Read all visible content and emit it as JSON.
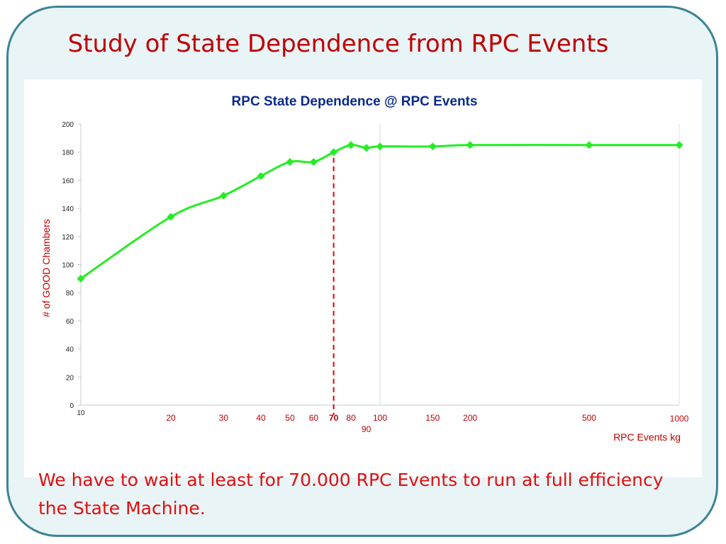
{
  "slide": {
    "title": "Study of State Dependence from RPC Events",
    "caption": "We have to wait at least for 70.000 RPC Events to run at full efficiency the State Machine."
  },
  "colors": {
    "title": "#c00000",
    "line": "#22ee22",
    "marker": "#22ee22",
    "x_tick_text": "#c00000",
    "threshold_line": "#e00000",
    "chart_title": "#0a2a8a",
    "frame_border": "#3d8494"
  },
  "chart_data": {
    "type": "line",
    "title": "RPC State Dependence @ RPC Events",
    "xlabel": "RPC Events  kg",
    "ylabel": "# of GOOD Chambers",
    "x_scale": "log",
    "xlim": [
      10,
      1000
    ],
    "ylim": [
      0,
      200
    ],
    "y_ticks": [
      0,
      20,
      40,
      60,
      80,
      100,
      120,
      140,
      160,
      180,
      200
    ],
    "x_tick_labels": [
      "10",
      "20",
      "30",
      "40",
      "50",
      "60",
      "70",
      "80",
      "90",
      "100",
      "150",
      "200",
      "500",
      "1000"
    ],
    "x_tick_values": [
      10,
      20,
      30,
      40,
      50,
      60,
      70,
      80,
      90,
      100,
      150,
      200,
      500,
      1000
    ],
    "highlighted_tick": "70",
    "vertical_gridline_at": 100,
    "threshold_marker": 70,
    "grid": false,
    "series": [
      {
        "x": [
          10,
          20,
          30,
          40,
          50,
          60,
          70,
          80,
          90,
          100,
          150,
          200,
          500,
          1000
        ],
        "y": [
          90,
          134,
          149,
          163,
          173,
          173,
          180,
          185,
          183,
          184,
          184,
          185,
          185,
          185
        ]
      }
    ]
  }
}
